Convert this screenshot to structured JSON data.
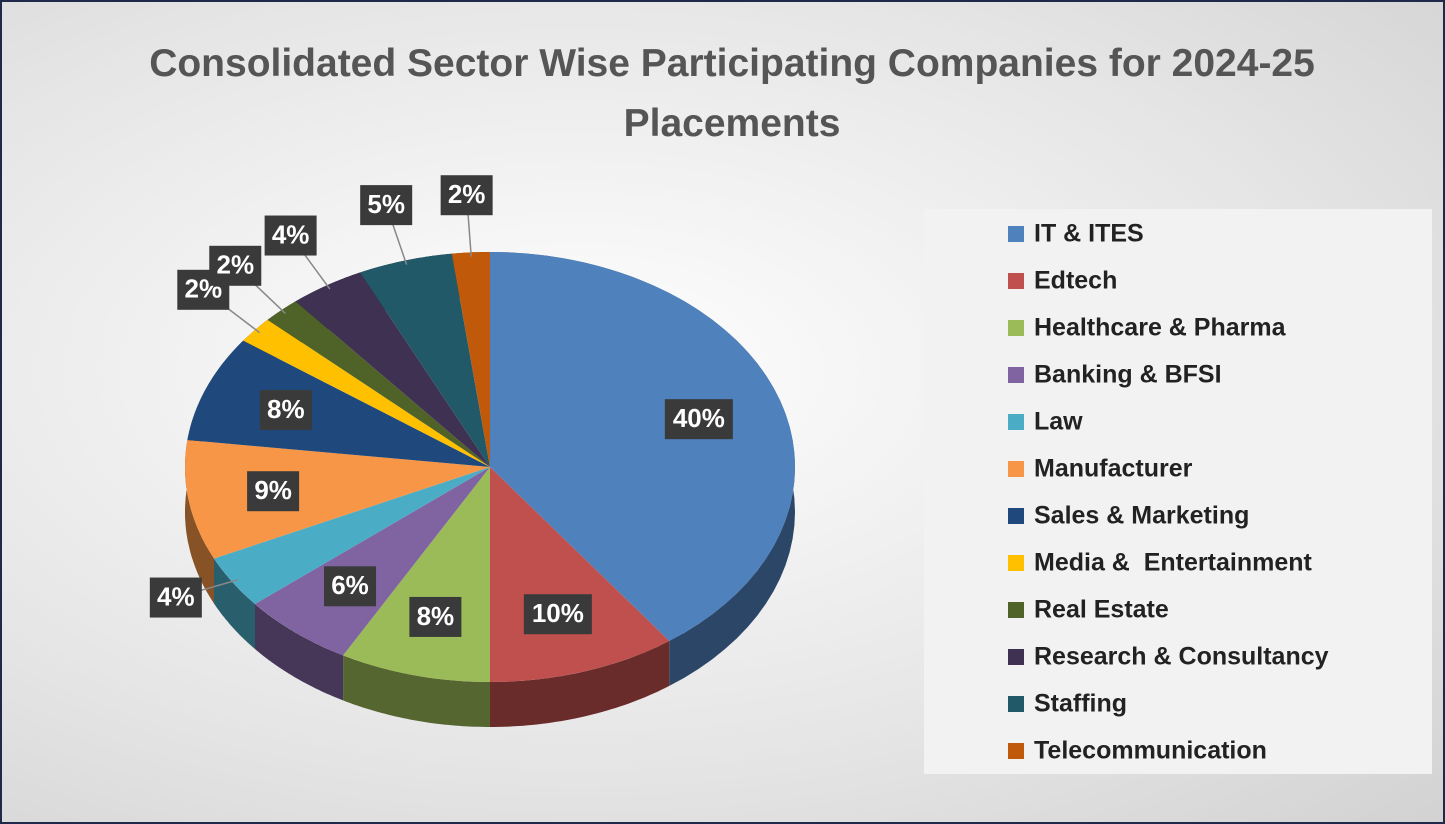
{
  "chart_data": {
    "type": "pie",
    "title": "Consolidated Sector Wise Participating Companies for 2024-25 Placements",
    "categories": [
      "IT & ITES",
      "Edtech",
      "Healthcare & Pharma",
      "Banking & BFSI",
      "Law",
      "Manufacturer",
      "Sales & Marketing",
      "Media &  Entertainment",
      "Real Estate",
      "Research & Consultancy",
      "Staffing",
      "Telecommunication"
    ],
    "values": [
      40,
      10,
      8,
      6,
      4,
      9,
      8,
      2,
      2,
      4,
      5,
      2
    ],
    "value_labels": [
      "40%",
      "10%",
      "8%",
      "6%",
      "4%",
      "9%",
      "8%",
      "2%",
      "2%",
      "4%",
      "5%",
      "2%"
    ],
    "colors": [
      "#4f81bd",
      "#c0504d",
      "#9bbb59",
      "#8064a2",
      "#4bacc6",
      "#f79646",
      "#1f497d",
      "#ffc000",
      "#4f6228",
      "#3f3151",
      "#215968",
      "#c0590a"
    ],
    "legend": "right"
  }
}
